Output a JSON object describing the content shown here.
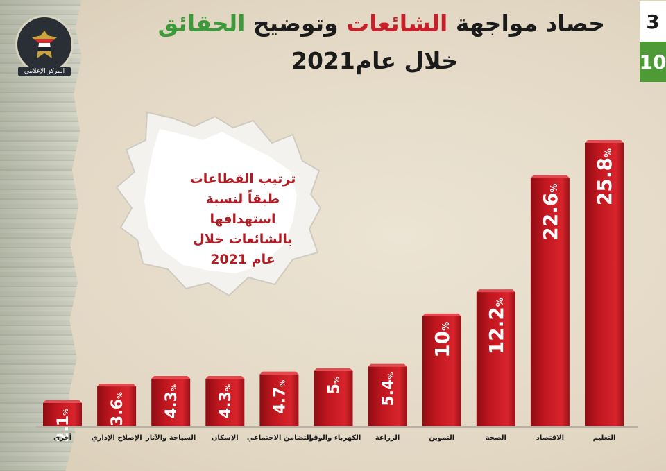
{
  "header": {
    "title_parts": [
      "حصاد مواجهة ",
      "الشائعات",
      " وتوضيح ",
      "الحقائق"
    ],
    "subtitle": "خلال عام2021",
    "page_current": "3",
    "page_total": "10",
    "logo_text": "المركز الإعلامي",
    "colors": {
      "accent_red": "#c8202a",
      "accent_green": "#4d9a37"
    }
  },
  "callout": {
    "lines": [
      "ترتيب القطاعات",
      "طبقاً لنسبة",
      "استهدافها",
      "بالشائعات خلال",
      "عام 2021"
    ]
  },
  "chart_data": {
    "type": "bar",
    "title": "",
    "categories": [
      "أخرى",
      "الإصلاح الإداري",
      "السياحة والآثار",
      "الإسكان",
      "التضامن الاجتماعي",
      "الكهرباء والوقود",
      "الزراعة",
      "التموين",
      "الصحة",
      "الاقتصاد",
      "التعليم"
    ],
    "values": [
      2.1,
      3.6,
      4.3,
      4.3,
      4.7,
      5,
      5.4,
      10,
      12.2,
      22.6,
      25.8
    ],
    "value_labels": [
      "2.1",
      "3.6",
      "4.3",
      "4.3",
      "4.7",
      "5",
      "5.4",
      "10",
      "12.2",
      "22.6",
      "25.8"
    ],
    "unit": "%",
    "ylim": [
      0,
      25.8
    ],
    "bar_color": "#c0161f",
    "grid": false,
    "legend": "none"
  }
}
